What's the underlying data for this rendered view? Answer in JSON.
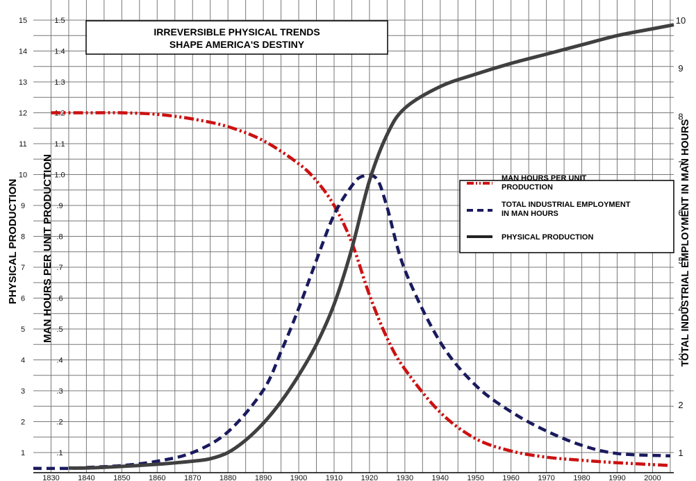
{
  "chart_data": {
    "type": "line",
    "title": "IRREVERSIBLE PHYSICAL TRENDS",
    "subtitle": "SHAPE AMERICA'S DESTINY",
    "ylabel_left_outer": "PHYSICAL PRODUCTION",
    "ylabel_left_inner": "MAN HOURS PER UNIT PRODUCTION",
    "ylabel_right": "TOTAL INDUSTRIAL EMPLOYMENT IN MAN HOURS",
    "x_ticks": [
      "1830",
      "1840",
      "1850",
      "1860",
      "1870",
      "1880",
      "1890",
      "1900",
      "1910",
      "1920",
      "1930",
      "1940",
      "1950",
      "1960",
      "1970",
      "1980",
      "1990",
      "2000"
    ],
    "y_left_outer_ticks": [
      "1",
      "2",
      "3",
      "4",
      "5",
      "6",
      "7",
      "8",
      "9",
      "10",
      "11",
      "12",
      "13",
      "14",
      "15"
    ],
    "y_left_inner_ticks": [
      ".1",
      ".2",
      ".3",
      ".4",
      ".5",
      ".6",
      ".7",
      ".8",
      ".9",
      "1.0",
      "1.1",
      "1.2",
      "1.3",
      "1.4",
      "1.5"
    ],
    "y_right_ticks": [
      "1",
      "2",
      "3",
      "4",
      "5",
      "6",
      "7",
      "8",
      "9",
      "10"
    ],
    "xlim": [
      1825,
      2006
    ],
    "ylim_left": [
      0.5,
      15.5
    ],
    "ylim_right": [
      0.67,
      10.33
    ],
    "grid": true,
    "legend_position": "right",
    "legend_border": true,
    "series": [
      {
        "name": "MAN HOURS PER UNIT PRODUCTION",
        "color": "#cc1111",
        "style": "dash-dot-dot",
        "axis": "left",
        "points": [
          [
            1830,
            12.0
          ],
          [
            1840,
            12.0
          ],
          [
            1850,
            12.0
          ],
          [
            1860,
            11.95
          ],
          [
            1870,
            11.8
          ],
          [
            1880,
            11.55
          ],
          [
            1890,
            11.1
          ],
          [
            1900,
            10.35
          ],
          [
            1905,
            9.8
          ],
          [
            1910,
            9.0
          ],
          [
            1915,
            7.8
          ],
          [
            1920,
            6.1
          ],
          [
            1925,
            4.7
          ],
          [
            1930,
            3.7
          ],
          [
            1940,
            2.3
          ],
          [
            1950,
            1.45
          ],
          [
            1960,
            1.05
          ],
          [
            1970,
            0.85
          ],
          [
            1980,
            0.75
          ],
          [
            1990,
            0.67
          ],
          [
            2005,
            0.58
          ]
        ]
      },
      {
        "name": "TOTAL INDUSTRIAL EMPLOYMENT IN MAN HOURS",
        "color": "#1a1a5e",
        "style": "dashed",
        "axis": "right",
        "points": [
          [
            1825,
            0.67
          ],
          [
            1835,
            0.67
          ],
          [
            1840,
            0.69
          ],
          [
            1850,
            0.73
          ],
          [
            1860,
            0.82
          ],
          [
            1870,
            1.0
          ],
          [
            1880,
            1.43
          ],
          [
            1890,
            2.3
          ],
          [
            1895,
            3.1
          ],
          [
            1900,
            4.0
          ],
          [
            1905,
            5.0
          ],
          [
            1910,
            5.95
          ],
          [
            1915,
            6.55
          ],
          [
            1918,
            6.75
          ],
          [
            1922,
            6.7
          ],
          [
            1925,
            6.1
          ],
          [
            1930,
            4.8
          ],
          [
            1940,
            3.3
          ],
          [
            1950,
            2.4
          ],
          [
            1960,
            1.85
          ],
          [
            1970,
            1.45
          ],
          [
            1980,
            1.15
          ],
          [
            1990,
            0.98
          ],
          [
            2005,
            0.93
          ]
        ]
      },
      {
        "name": "PHYSICAL PRODUCTION",
        "color": "#404040",
        "style": "solid",
        "axis": "left",
        "points": [
          [
            1835,
            0.5
          ],
          [
            1840,
            0.5
          ],
          [
            1850,
            0.55
          ],
          [
            1860,
            0.62
          ],
          [
            1870,
            0.72
          ],
          [
            1875,
            0.8
          ],
          [
            1880,
            1.0
          ],
          [
            1885,
            1.4
          ],
          [
            1890,
            1.95
          ],
          [
            1895,
            2.65
          ],
          [
            1900,
            3.5
          ],
          [
            1905,
            4.5
          ],
          [
            1910,
            5.8
          ],
          [
            1915,
            7.6
          ],
          [
            1920,
            9.8
          ],
          [
            1925,
            11.3
          ],
          [
            1930,
            12.15
          ],
          [
            1940,
            12.85
          ],
          [
            1950,
            13.25
          ],
          [
            1960,
            13.6
          ],
          [
            1970,
            13.9
          ],
          [
            1980,
            14.2
          ],
          [
            1990,
            14.5
          ],
          [
            2000,
            14.72
          ],
          [
            2006,
            14.85
          ]
        ]
      }
    ]
  }
}
